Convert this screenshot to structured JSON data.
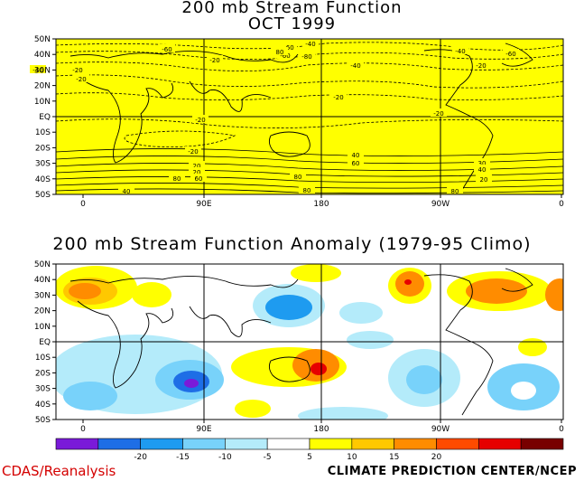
{
  "panel1": {
    "title": "200 mb Stream Function",
    "subtitle": "OCT 1999",
    "fill_color": "#ffff00",
    "contour_labels": [
      "-60",
      "-60",
      "-40",
      "-20",
      "-40",
      "-20",
      "-20",
      "-60",
      "-80",
      "-40",
      "-20",
      "-60",
      "-40",
      "-20",
      "-20",
      "-20",
      "-20",
      "20",
      "20",
      "40",
      "60",
      "80",
      "80",
      "80",
      "30",
      "40",
      "80",
      "20",
      "40",
      "60",
      "80"
    ]
  },
  "panel2": {
    "title": "200 mb Stream Function Anomaly (1979-95 Climo)"
  },
  "axes": {
    "lat_ticks": [
      "50N",
      "40N",
      "30N",
      "20N",
      "10N",
      "EQ",
      "10S",
      "20S",
      "30S",
      "40S",
      "50S"
    ],
    "lon_ticks": [
      "0",
      "90E",
      "180",
      "90W",
      "0"
    ]
  },
  "colorbar": {
    "labels": [
      "-20",
      "-15",
      "-10",
      "-5",
      "5",
      "10",
      "15",
      "20"
    ],
    "colors": [
      "#7a1ad9",
      "#1e6ee6",
      "#1e9bf0",
      "#78d2fa",
      "#b4ebfa",
      "#ffffff",
      "#ffff00",
      "#ffc800",
      "#ff8c00",
      "#ff4b00",
      "#e60000",
      "#780000"
    ]
  },
  "footer": {
    "left": "CDAS/Reanalysis",
    "right": "CLIMATE PREDICTION CENTER/NCEP"
  },
  "chart_data": [
    {
      "type": "heatmap",
      "title": "200 mb Stream Function",
      "subtitle": "OCT 1999",
      "x_ticks": [
        "0",
        "90E",
        "180",
        "90W",
        "0"
      ],
      "y_ticks": [
        "50N",
        "40N",
        "30N",
        "20N",
        "10N",
        "EQ",
        "10S",
        "20S",
        "30S",
        "40S",
        "50S"
      ],
      "contour_labels": [
        "-60",
        "-40",
        "-20",
        "20",
        "40",
        "60",
        "80"
      ]
    },
    {
      "type": "heatmap",
      "title": "200 mb Stream Function Anomaly (1979-95 Climo)",
      "x_ticks": [
        "0",
        "90E",
        "180",
        "90W",
        "0"
      ],
      "y_ticks": [
        "50N",
        "40N",
        "30N",
        "20N",
        "10N",
        "EQ",
        "10S",
        "20S",
        "30S",
        "40S",
        "50S"
      ],
      "colorbar_labels": [
        "-20",
        "-15",
        "-10",
        "-5",
        "5",
        "10",
        "15",
        "20"
      ]
    }
  ]
}
